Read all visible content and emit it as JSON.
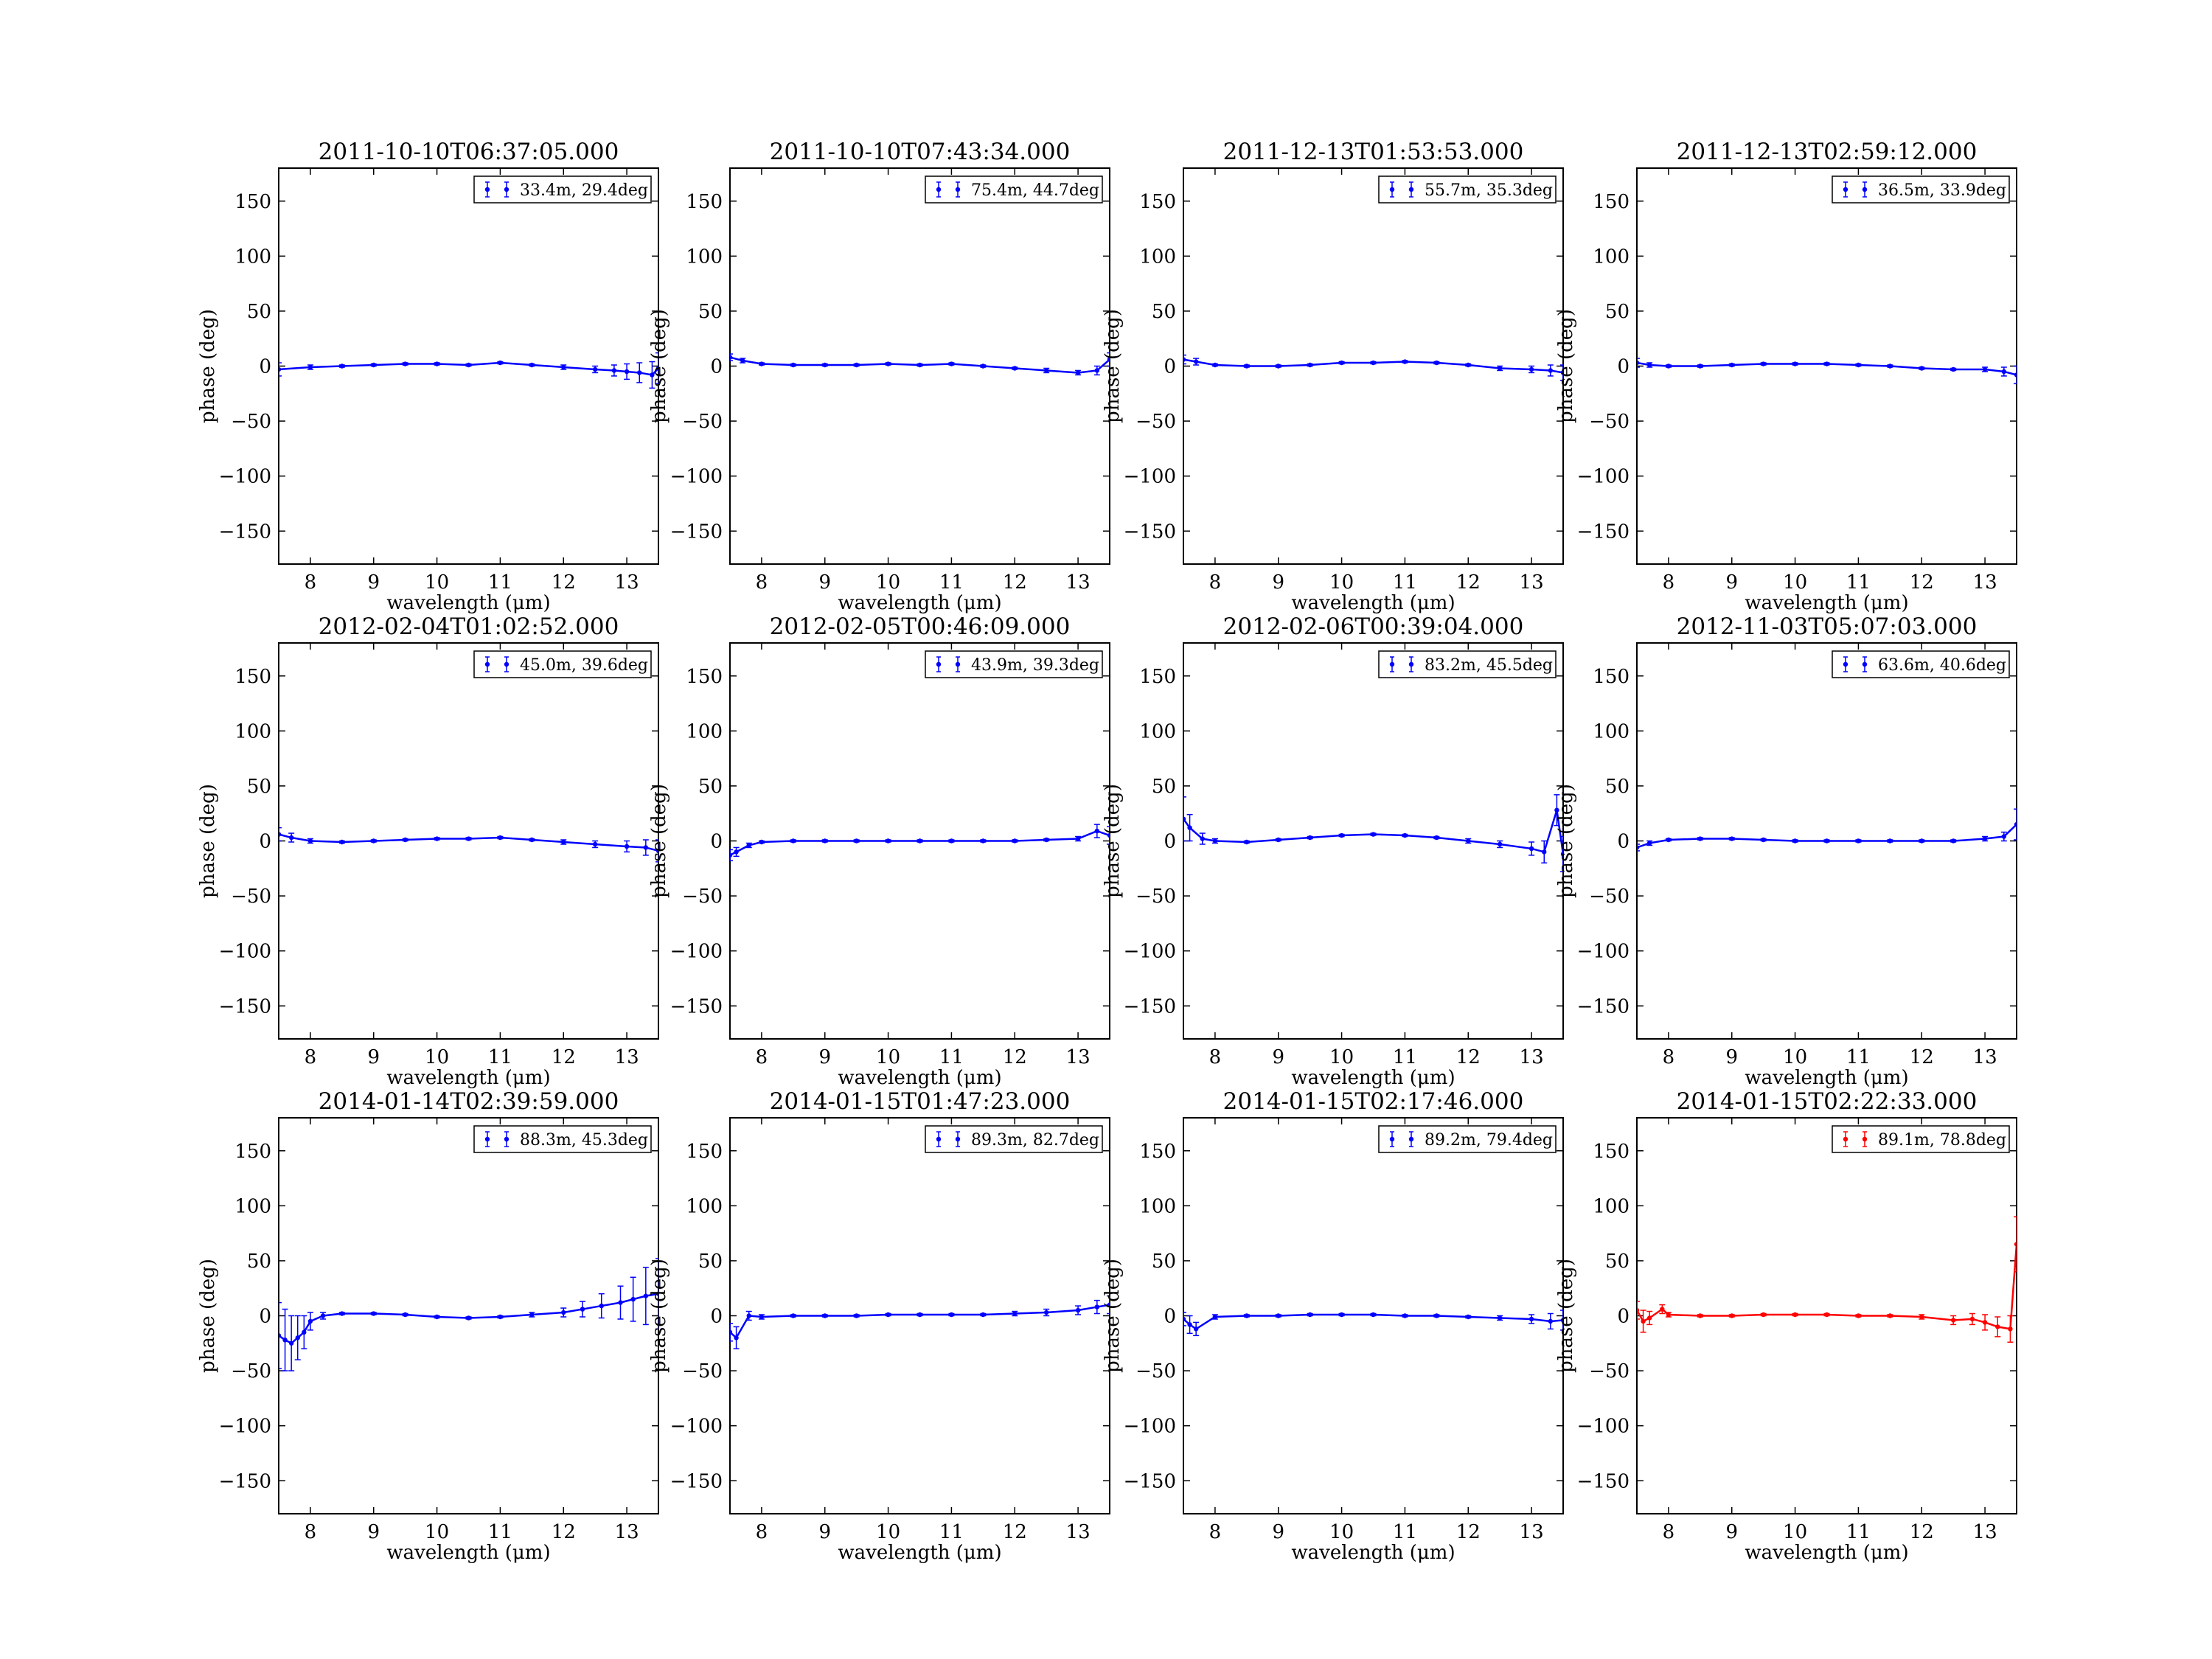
{
  "figure": {
    "colors": {
      "blue": "#0000ff",
      "red": "#ff0000",
      "frame": "#000000"
    },
    "xlabel": "wavelength (μm)",
    "ylabel": "phase (deg)"
  },
  "chart_data": [
    {
      "type": "errorbar",
      "title": "2011-10-10T06:37:05.000",
      "legend": "33.4m, 29.4deg",
      "color": "#0000ff",
      "xlim": [
        7.5,
        13.5
      ],
      "ylim": [
        -180,
        180
      ],
      "xticks": [
        8,
        9,
        10,
        11,
        12,
        13
      ],
      "yticks": [
        -150,
        -100,
        -50,
        0,
        50,
        100,
        150
      ],
      "xlabel": "wavelength (μm)",
      "ylabel": "phase (deg)",
      "x": [
        7.5,
        8.0,
        8.5,
        9.0,
        9.5,
        10.0,
        10.5,
        11.0,
        11.5,
        12.0,
        12.5,
        12.8,
        13.0,
        13.2,
        13.4,
        13.5
      ],
      "y": [
        -3,
        -1,
        0,
        1,
        2,
        2,
        1,
        3,
        1,
        -1,
        -3,
        -4,
        -5,
        -6,
        -8,
        -2
      ],
      "yerr": [
        6,
        2,
        1,
        1,
        1,
        1,
        1,
        1,
        1,
        2,
        3,
        5,
        7,
        9,
        12,
        14
      ]
    },
    {
      "type": "errorbar",
      "title": "2011-10-10T07:43:34.000",
      "legend": "75.4m, 44.7deg",
      "color": "#0000ff",
      "xlim": [
        7.5,
        13.5
      ],
      "ylim": [
        -180,
        180
      ],
      "xticks": [
        8,
        9,
        10,
        11,
        12,
        13
      ],
      "yticks": [
        -150,
        -100,
        -50,
        0,
        50,
        100,
        150
      ],
      "xlabel": "wavelength (μm)",
      "ylabel": "phase (deg)",
      "x": [
        7.5,
        7.7,
        8.0,
        8.5,
        9.0,
        9.5,
        10.0,
        10.5,
        11.0,
        11.5,
        12.0,
        12.5,
        13.0,
        13.3,
        13.5
      ],
      "y": [
        8,
        5,
        2,
        1,
        1,
        1,
        2,
        1,
        2,
        0,
        -2,
        -4,
        -6,
        -4,
        6
      ],
      "yerr": [
        3,
        2,
        1,
        1,
        1,
        1,
        1,
        1,
        1,
        1,
        1,
        2,
        2,
        4,
        6
      ]
    },
    {
      "type": "errorbar",
      "title": "2011-12-13T01:53:53.000",
      "legend": "55.7m, 35.3deg",
      "color": "#0000ff",
      "xlim": [
        7.5,
        13.5
      ],
      "ylim": [
        -180,
        180
      ],
      "xticks": [
        8,
        9,
        10,
        11,
        12,
        13
      ],
      "yticks": [
        -150,
        -100,
        -50,
        0,
        50,
        100,
        150
      ],
      "xlabel": "wavelength (μm)",
      "ylabel": "phase (deg)",
      "x": [
        7.5,
        7.7,
        8.0,
        8.5,
        9.0,
        9.5,
        10.0,
        10.5,
        11.0,
        11.5,
        12.0,
        12.5,
        13.0,
        13.3,
        13.5
      ],
      "y": [
        6,
        4,
        1,
        0,
        0,
        1,
        3,
        3,
        4,
        3,
        1,
        -2,
        -3,
        -4,
        -6
      ],
      "yerr": [
        4,
        3,
        1,
        1,
        1,
        1,
        1,
        1,
        1,
        1,
        1,
        2,
        3,
        5,
        7
      ]
    },
    {
      "type": "errorbar",
      "title": "2011-12-13T02:59:12.000",
      "legend": "36.5m, 33.9deg",
      "color": "#0000ff",
      "xlim": [
        7.5,
        13.5
      ],
      "ylim": [
        -180,
        180
      ],
      "xticks": [
        8,
        9,
        10,
        11,
        12,
        13
      ],
      "yticks": [
        -150,
        -100,
        -50,
        0,
        50,
        100,
        150
      ],
      "xlabel": "wavelength (μm)",
      "ylabel": "phase (deg)",
      "x": [
        7.5,
        7.7,
        8.0,
        8.5,
        9.0,
        9.5,
        10.0,
        10.5,
        11.0,
        11.5,
        12.0,
        12.5,
        13.0,
        13.3,
        13.5
      ],
      "y": [
        3,
        1,
        0,
        0,
        1,
        2,
        2,
        2,
        1,
        0,
        -2,
        -3,
        -3,
        -5,
        -8
      ],
      "yerr": [
        4,
        2,
        1,
        1,
        1,
        1,
        1,
        1,
        1,
        1,
        1,
        1,
        2,
        4,
        8
      ]
    },
    {
      "type": "errorbar",
      "title": "2012-02-04T01:02:52.000",
      "legend": "45.0m, 39.6deg",
      "color": "#0000ff",
      "xlim": [
        7.5,
        13.5
      ],
      "ylim": [
        -180,
        180
      ],
      "xticks": [
        8,
        9,
        10,
        11,
        12,
        13
      ],
      "yticks": [
        -150,
        -100,
        -50,
        0,
        50,
        100,
        150
      ],
      "xlabel": "wavelength (μm)",
      "ylabel": "phase (deg)",
      "x": [
        7.5,
        7.7,
        8.0,
        8.5,
        9.0,
        9.5,
        10.0,
        10.5,
        11.0,
        11.5,
        12.0,
        12.5,
        13.0,
        13.3,
        13.5
      ],
      "y": [
        6,
        3,
        0,
        -1,
        0,
        1,
        2,
        2,
        3,
        1,
        -1,
        -3,
        -5,
        -6,
        -9
      ],
      "yerr": [
        6,
        4,
        2,
        1,
        1,
        1,
        1,
        1,
        1,
        1,
        2,
        3,
        5,
        7,
        10
      ]
    },
    {
      "type": "errorbar",
      "title": "2012-02-05T00:46:09.000",
      "legend": "43.9m, 39.3deg",
      "color": "#0000ff",
      "xlim": [
        7.5,
        13.5
      ],
      "ylim": [
        -180,
        180
      ],
      "xticks": [
        8,
        9,
        10,
        11,
        12,
        13
      ],
      "yticks": [
        -150,
        -100,
        -50,
        0,
        50,
        100,
        150
      ],
      "xlabel": "wavelength (μm)",
      "ylabel": "phase (deg)",
      "x": [
        7.5,
        7.6,
        7.8,
        8.0,
        8.5,
        9.0,
        9.5,
        10.0,
        10.5,
        11.0,
        11.5,
        12.0,
        12.5,
        13.0,
        13.3,
        13.5
      ],
      "y": [
        -13,
        -10,
        -4,
        -1,
        0,
        0,
        0,
        0,
        0,
        0,
        0,
        0,
        1,
        2,
        9,
        5
      ],
      "yerr": [
        5,
        4,
        2,
        1,
        1,
        1,
        1,
        1,
        1,
        1,
        1,
        1,
        1,
        2,
        6,
        8
      ]
    },
    {
      "type": "errorbar",
      "title": "2012-02-06T00:39:04.000",
      "legend": "83.2m, 45.5deg",
      "color": "#0000ff",
      "xlim": [
        7.5,
        13.5
      ],
      "ylim": [
        -180,
        180
      ],
      "xticks": [
        8,
        9,
        10,
        11,
        12,
        13
      ],
      "yticks": [
        -150,
        -100,
        -50,
        0,
        50,
        100,
        150
      ],
      "xlabel": "wavelength (μm)",
      "ylabel": "phase (deg)",
      "x": [
        7.5,
        7.6,
        7.8,
        8.0,
        8.5,
        9.0,
        9.5,
        10.0,
        10.5,
        11.0,
        11.5,
        12.0,
        12.5,
        13.0,
        13.2,
        13.4,
        13.5
      ],
      "y": [
        20,
        12,
        2,
        0,
        -1,
        1,
        3,
        5,
        6,
        5,
        3,
        0,
        -3,
        -7,
        -10,
        28,
        -12
      ],
      "yerr": [
        20,
        12,
        5,
        2,
        1,
        1,
        1,
        1,
        1,
        1,
        1,
        2,
        3,
        6,
        10,
        14,
        16
      ]
    },
    {
      "type": "errorbar",
      "title": "2012-11-03T05:07:03.000",
      "legend": "63.6m, 40.6deg",
      "color": "#0000ff",
      "xlim": [
        7.5,
        13.5
      ],
      "ylim": [
        -180,
        180
      ],
      "xticks": [
        8,
        9,
        10,
        11,
        12,
        13
      ],
      "yticks": [
        -150,
        -100,
        -50,
        0,
        50,
        100,
        150
      ],
      "xlabel": "wavelength (μm)",
      "ylabel": "phase (deg)",
      "x": [
        7.5,
        7.7,
        8.0,
        8.5,
        9.0,
        9.5,
        10.0,
        10.5,
        11.0,
        11.5,
        12.0,
        12.5,
        13.0,
        13.3,
        13.5
      ],
      "y": [
        -6,
        -2,
        1,
        2,
        2,
        1,
        0,
        0,
        0,
        0,
        0,
        0,
        2,
        4,
        15
      ],
      "yerr": [
        3,
        2,
        1,
        1,
        1,
        1,
        1,
        1,
        1,
        1,
        1,
        1,
        2,
        4,
        14
      ]
    },
    {
      "type": "errorbar",
      "title": "2014-01-14T02:39:59.000",
      "legend": "88.3m, 45.3deg",
      "color": "#0000ff",
      "xlim": [
        7.5,
        13.5
      ],
      "ylim": [
        -180,
        180
      ],
      "xticks": [
        8,
        9,
        10,
        11,
        12,
        13
      ],
      "yticks": [
        -150,
        -100,
        -50,
        0,
        50,
        100,
        150
      ],
      "xlabel": "wavelength (μm)",
      "ylabel": "phase (deg)",
      "x": [
        7.5,
        7.6,
        7.7,
        7.8,
        7.9,
        8.0,
        8.2,
        8.5,
        9.0,
        9.5,
        10.0,
        10.5,
        11.0,
        11.5,
        12.0,
        12.3,
        12.6,
        12.9,
        13.1,
        13.3,
        13.5
      ],
      "y": [
        -18,
        -22,
        -25,
        -20,
        -15,
        -5,
        0,
        2,
        2,
        1,
        -1,
        -2,
        -1,
        1,
        3,
        6,
        9,
        12,
        15,
        18,
        20
      ],
      "yerr": [
        30,
        28,
        25,
        20,
        15,
        8,
        3,
        1,
        1,
        1,
        1,
        1,
        1,
        2,
        4,
        7,
        11,
        15,
        20,
        26,
        32
      ]
    },
    {
      "type": "errorbar",
      "title": "2014-01-15T01:47:23.000",
      "legend": "89.3m, 82.7deg",
      "color": "#0000ff",
      "xlim": [
        7.5,
        13.5
      ],
      "ylim": [
        -180,
        180
      ],
      "xticks": [
        8,
        9,
        10,
        11,
        12,
        13
      ],
      "yticks": [
        -150,
        -100,
        -50,
        0,
        50,
        100,
        150
      ],
      "xlabel": "wavelength (μm)",
      "ylabel": "phase (deg)",
      "x": [
        7.5,
        7.6,
        7.8,
        8.0,
        8.5,
        9.0,
        9.5,
        10.0,
        10.5,
        11.0,
        11.5,
        12.0,
        12.5,
        13.0,
        13.3,
        13.5
      ],
      "y": [
        -15,
        -20,
        0,
        -1,
        0,
        0,
        0,
        1,
        1,
        1,
        1,
        2,
        3,
        5,
        8,
        10
      ],
      "yerr": [
        8,
        10,
        4,
        2,
        1,
        1,
        1,
        1,
        1,
        1,
        1,
        2,
        3,
        4,
        6,
        8
      ]
    },
    {
      "type": "errorbar",
      "title": "2014-01-15T02:17:46.000",
      "legend": "89.2m, 79.4deg",
      "color": "#0000ff",
      "xlim": [
        7.5,
        13.5
      ],
      "ylim": [
        -180,
        180
      ],
      "xticks": [
        8,
        9,
        10,
        11,
        12,
        13
      ],
      "yticks": [
        -150,
        -100,
        -50,
        0,
        50,
        100,
        150
      ],
      "xlabel": "wavelength (μm)",
      "ylabel": "phase (deg)",
      "x": [
        7.5,
        7.6,
        7.7,
        8.0,
        8.5,
        9.0,
        9.5,
        10.0,
        10.5,
        11.0,
        11.5,
        12.0,
        12.5,
        13.0,
        13.3,
        13.5
      ],
      "y": [
        -3,
        -8,
        -12,
        -1,
        0,
        0,
        1,
        1,
        1,
        0,
        0,
        -1,
        -2,
        -3,
        -5,
        -4
      ],
      "yerr": [
        6,
        8,
        6,
        2,
        1,
        1,
        1,
        1,
        1,
        1,
        1,
        1,
        2,
        4,
        7,
        9
      ]
    },
    {
      "type": "errorbar",
      "title": "2014-01-15T02:22:33.000",
      "legend": "89.1m, 78.8deg",
      "color": "#ff0000",
      "xlim": [
        7.5,
        13.5
      ],
      "ylim": [
        -180,
        180
      ],
      "xticks": [
        8,
        9,
        10,
        11,
        12,
        13
      ],
      "yticks": [
        -150,
        -100,
        -50,
        0,
        50,
        100,
        150
      ],
      "xlabel": "wavelength (μm)",
      "ylabel": "phase (deg)",
      "x": [
        7.5,
        7.6,
        7.7,
        7.9,
        8.0,
        8.5,
        9.0,
        9.5,
        10.0,
        10.5,
        11.0,
        11.5,
        12.0,
        12.5,
        12.8,
        13.0,
        13.2,
        13.4,
        13.5
      ],
      "y": [
        5,
        -5,
        -2,
        6,
        1,
        0,
        0,
        1,
        1,
        1,
        0,
        0,
        -1,
        -4,
        -3,
        -6,
        -10,
        -12,
        65
      ],
      "yerr": [
        8,
        10,
        6,
        4,
        2,
        1,
        1,
        1,
        1,
        1,
        1,
        1,
        2,
        4,
        5,
        7,
        9,
        12,
        25
      ]
    }
  ]
}
